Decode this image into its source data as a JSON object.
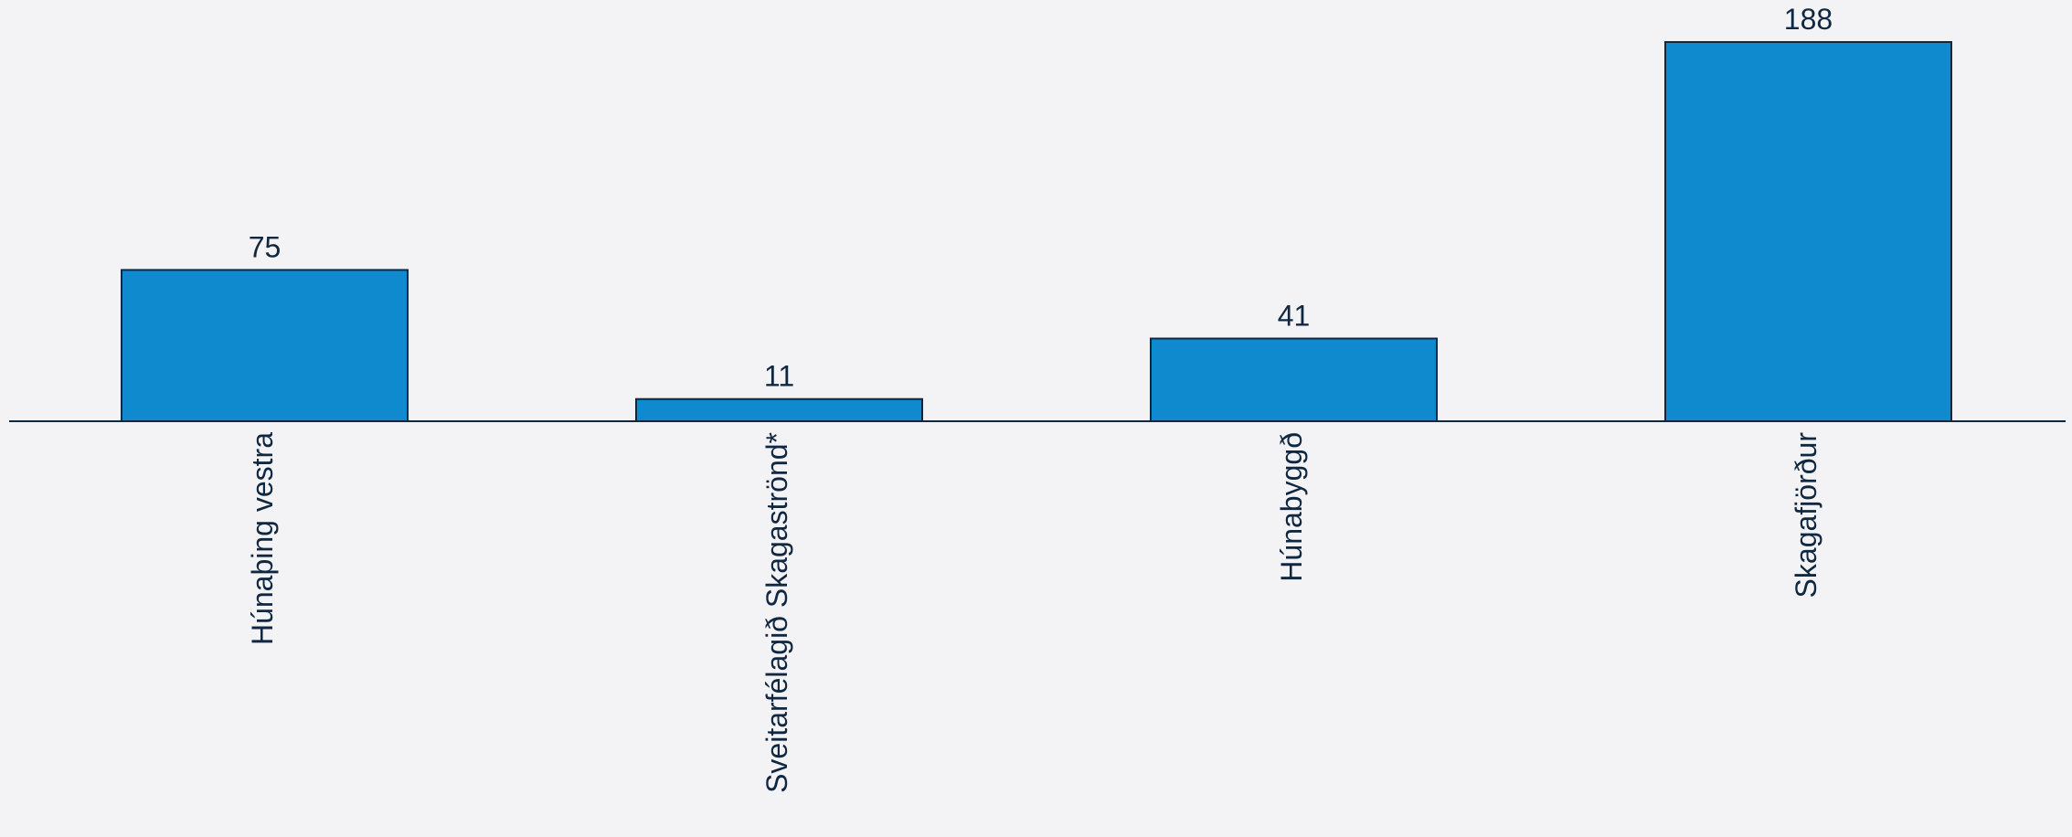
{
  "chart_data": {
    "type": "bar",
    "categories": [
      "Húnaþing vestra",
      "Sveitarfélagið Skagaströnd*",
      "Húnabyggð",
      "Skagafjörður"
    ],
    "values": [
      75,
      11,
      41,
      188
    ],
    "ylim": [
      0,
      188
    ],
    "grid": false,
    "legend": "none",
    "data_labels": true,
    "colors": {
      "bar": "#0f8acf",
      "text": "#0f2740",
      "background": "#f3f3f5"
    }
  }
}
